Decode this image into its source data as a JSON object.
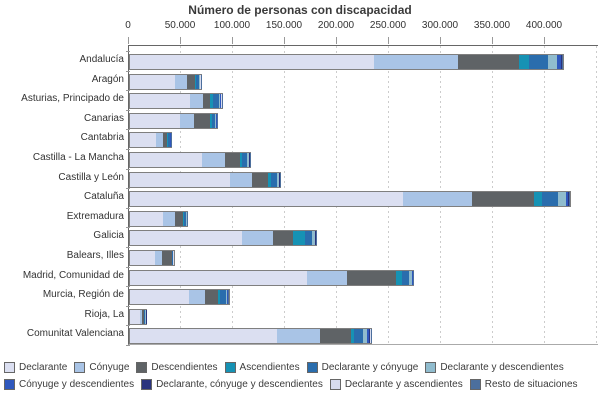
{
  "chart_data": {
    "type": "bar",
    "orientation": "horizontal",
    "stacked": true,
    "title": "Número de personas con discapacidad",
    "xlabel": "",
    "ylabel": "",
    "xlim": [
      0,
      450000
    ],
    "grid": "dashed-vertical",
    "legend_position": "bottom",
    "categories": [
      "Andalucía",
      "Aragón",
      "Asturias, Principado de",
      "Canarias",
      "Cantabria",
      "Castilla - La Mancha",
      "Castilla y León",
      "Cataluña",
      "Extremadura",
      "Galicia",
      "Balears, Illes",
      "Madrid, Comunidad de",
      "Murcia, Región de",
      "Rioja, La",
      "Comunitat Valenciana"
    ],
    "series": [
      {
        "name": "Declarante",
        "color": "#DBDFF1",
        "values": [
          235000,
          43000,
          57500,
          48000,
          25000,
          69000,
          96000,
          262500,
          31500,
          107500,
          24000,
          170000,
          56500,
          9500,
          141500
        ]
      },
      {
        "name": "Cónyuge",
        "color": "#A9C4E6",
        "values": [
          80000,
          11500,
          12500,
          13500,
          6700,
          22000,
          21500,
          66500,
          11500,
          30000,
          6500,
          38500,
          15500,
          2500,
          41000
        ]
      },
      {
        "name": "Descendientes",
        "color": "#5F6366",
        "values": [
          59000,
          8000,
          7000,
          15500,
          3800,
          14500,
          15500,
          59500,
          7500,
          19000,
          9500,
          47000,
          12500,
          1500,
          30000
        ]
      },
      {
        "name": "Ascendientes",
        "color": "#1692B4",
        "values": [
          9500,
          1200,
          2500,
          2000,
          800,
          2500,
          2500,
          8000,
          1200,
          11500,
          500,
          6500,
          2500,
          400,
          3000
        ]
      },
      {
        "name": "Declarante y cónyuge",
        "color": "#2A6DAD",
        "values": [
          18000,
          2500,
          6000,
          3000,
          2000,
          4500,
          6000,
          15500,
          2200,
          7500,
          800,
          6000,
          5000,
          900,
          8500
        ]
      },
      {
        "name": "Declarante y descendientes",
        "color": "#90BCCE",
        "values": [
          9500,
          800,
          1500,
          800,
          500,
          1500,
          1500,
          7500,
          500,
          2000,
          300,
          3500,
          1500,
          300,
          4000
        ]
      },
      {
        "name": "Cónyuge y descendientes",
        "color": "#2F58BE",
        "values": [
          3000,
          500,
          700,
          500,
          300,
          700,
          700,
          2000,
          300,
          700,
          150,
          500,
          700,
          150,
          2000
        ]
      },
      {
        "name": "Declarante, cónyuge y descendientes",
        "color": "#2A337E",
        "values": [
          1000,
          300,
          300,
          300,
          150,
          300,
          300,
          700,
          100,
          300,
          100,
          200,
          300,
          100,
          1000
        ]
      },
      {
        "name": "Declarante y ascendientes",
        "color": "#D7DBEE",
        "values": [
          500,
          350,
          250,
          200,
          125,
          250,
          250,
          400,
          100,
          250,
          75,
          150,
          250,
          75,
          500
        ]
      },
      {
        "name": "Resto de situaciones",
        "color": "#4C6F9D",
        "values": [
          500,
          350,
          250,
          200,
          125,
          250,
          250,
          400,
          100,
          250,
          75,
          150,
          250,
          75,
          500
        ]
      }
    ],
    "x_axis": {
      "ticks": [
        {
          "value": 0,
          "label": "0"
        },
        {
          "value": 50000,
          "label": "50.000"
        },
        {
          "value": 100000,
          "label": "100.000"
        },
        {
          "value": 150000,
          "label": "150.000"
        },
        {
          "value": 200000,
          "label": "200.000"
        },
        {
          "value": 250000,
          "label": "250.000"
        },
        {
          "value": 300000,
          "label": "300.000"
        },
        {
          "value": 350000,
          "label": "350.000"
        },
        {
          "value": 400000,
          "label": "400.000"
        }
      ],
      "unlabeled_grid_values": [
        450000
      ]
    },
    "legend_rows": [
      6,
      4
    ]
  },
  "colors": {
    "axis_line": "#666666",
    "gridline": "#cccccc",
    "bar_border": "#7f7f7f",
    "text": "#333333",
    "title_text": "#3a3a3a"
  }
}
